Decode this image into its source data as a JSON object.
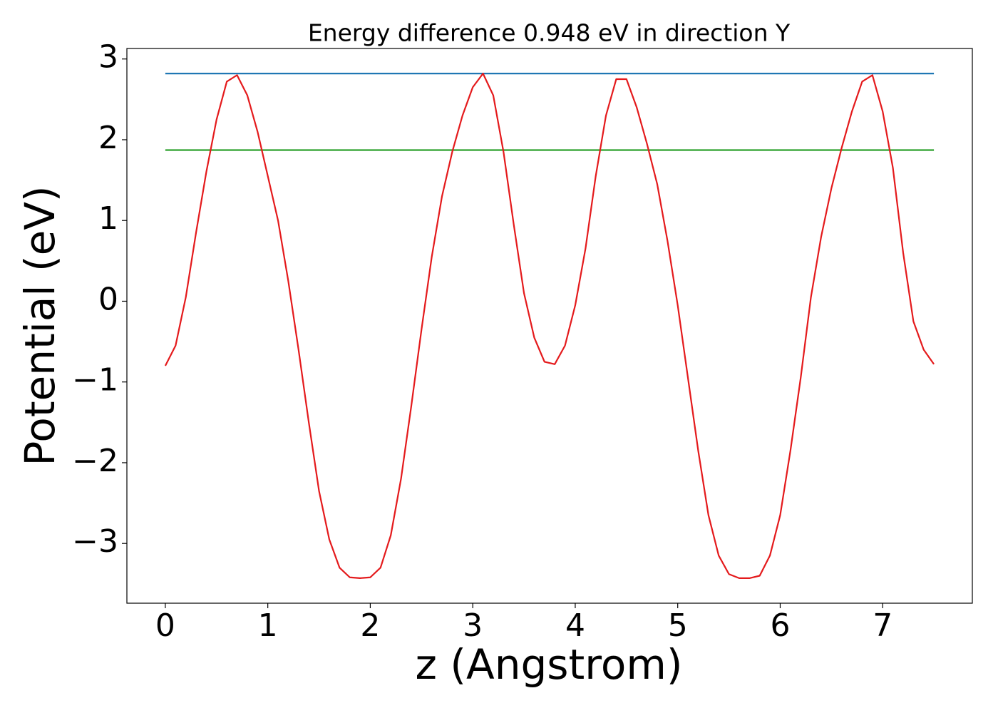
{
  "chart_data": {
    "type": "line",
    "title": "Energy difference 0.948 eV in direction Y",
    "x_label": "z (Angstrom)",
    "y_label": "Potential (eV)",
    "xlim": [
      -0.375,
      7.875
    ],
    "ylim": [
      -3.74,
      3.13
    ],
    "xticks": [
      0,
      1,
      2,
      3,
      4,
      5,
      6,
      7
    ],
    "yticks": [
      {
        "value": -3,
        "label": "−3"
      },
      {
        "value": -2,
        "label": "−2"
      },
      {
        "value": -1,
        "label": "−1"
      },
      0,
      1,
      2,
      3
    ],
    "grid": false,
    "series": [
      {
        "color": "#1f77b4",
        "x": [
          0,
          7.5
        ],
        "values": [
          2.82,
          2.82
        ]
      },
      {
        "color": "#2ca02c",
        "x": [
          0,
          7.5
        ],
        "values": [
          1.872,
          1.872
        ]
      },
      {
        "color": "#e41a1c",
        "x": [
          0,
          0.1,
          0.2,
          0.3,
          0.4,
          0.5,
          0.6,
          0.7,
          0.8,
          0.9,
          1.0,
          1.1,
          1.2,
          1.3,
          1.4,
          1.5,
          1.6,
          1.7,
          1.8,
          1.9,
          2.0,
          2.1,
          2.2,
          2.3,
          2.4,
          2.5,
          2.6,
          2.7,
          2.8,
          2.9,
          3.0,
          3.1,
          3.2,
          3.3,
          3.4,
          3.5,
          3.6,
          3.7,
          3.8,
          3.9,
          4.0,
          4.1,
          4.2,
          4.3,
          4.4,
          4.5,
          4.6,
          4.7,
          4.8,
          4.9,
          5.0,
          5.1,
          5.2,
          5.3,
          5.4,
          5.5,
          5.6,
          5.7,
          5.8,
          5.9,
          6.0,
          6.1,
          6.2,
          6.3,
          6.4,
          6.5,
          6.6,
          6.7,
          6.8,
          6.9,
          7.0,
          7.1,
          7.2,
          7.3,
          7.4,
          7.5
        ],
        "values": [
          -0.8,
          -0.55,
          0.05,
          0.85,
          1.6,
          2.25,
          2.72,
          2.8,
          2.55,
          2.1,
          1.55,
          1.0,
          0.25,
          -0.6,
          -1.5,
          -2.35,
          -2.95,
          -3.3,
          -3.42,
          -3.43,
          -3.42,
          -3.3,
          -2.9,
          -2.2,
          -1.3,
          -0.35,
          0.55,
          1.3,
          1.85,
          2.3,
          2.65,
          2.82,
          2.55,
          1.85,
          0.95,
          0.1,
          -0.45,
          -0.75,
          -0.78,
          -0.55,
          -0.05,
          0.65,
          1.55,
          2.3,
          2.75,
          2.75,
          2.4,
          1.95,
          1.45,
          0.75,
          -0.05,
          -0.95,
          -1.85,
          -2.65,
          -3.15,
          -3.38,
          -3.43,
          -3.43,
          -3.4,
          -3.15,
          -2.65,
          -1.85,
          -0.95,
          0.05,
          0.8,
          1.4,
          1.9,
          2.35,
          2.72,
          2.8,
          2.35,
          1.65,
          0.6,
          -0.25,
          -0.6,
          -0.78
        ]
      }
    ]
  }
}
